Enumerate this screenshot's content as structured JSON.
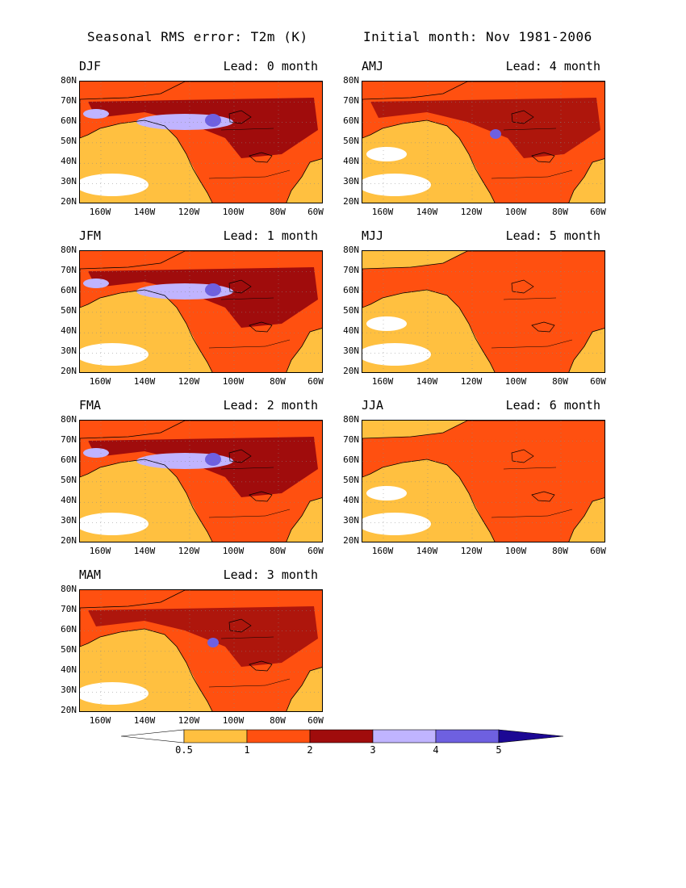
{
  "header": {
    "left_title": "Seasonal RMS error: T2m (K)",
    "right_title": "Initial month: Nov 1981-2006"
  },
  "axes": {
    "lat_labels": [
      "80N",
      "70N",
      "60N",
      "50N",
      "40N",
      "30N",
      "20N"
    ],
    "lon_labels": [
      "160W",
      "140W",
      "120W",
      "100W",
      "80W",
      "60W"
    ]
  },
  "panels": [
    {
      "season": "DJF",
      "lead": "Lead: 0 month",
      "col": 0,
      "row": 0,
      "intensity": 3
    },
    {
      "season": "AMJ",
      "lead": "Lead: 4 month",
      "col": 1,
      "row": 0,
      "intensity": 2
    },
    {
      "season": "JFM",
      "lead": "Lead: 1 month",
      "col": 0,
      "row": 1,
      "intensity": 3
    },
    {
      "season": "MJJ",
      "lead": "Lead: 5 month",
      "col": 1,
      "row": 1,
      "intensity": 1
    },
    {
      "season": "FMA",
      "lead": "Lead: 2 month",
      "col": 0,
      "row": 2,
      "intensity": 3
    },
    {
      "season": "JJA",
      "lead": "Lead: 6 month",
      "col": 1,
      "row": 2,
      "intensity": 1
    },
    {
      "season": "MAM",
      "lead": "Lead: 3 month",
      "col": 0,
      "row": 3,
      "intensity": 2
    }
  ],
  "colorbar": {
    "levels": [
      "0.5",
      "1",
      "2",
      "3",
      "4",
      "5"
    ],
    "colors": [
      "#ffffff",
      "#ffc040",
      "#ff5010",
      "#a00c0c",
      "#c0b4ff",
      "#6e60e0",
      "#1c0894"
    ]
  }
}
